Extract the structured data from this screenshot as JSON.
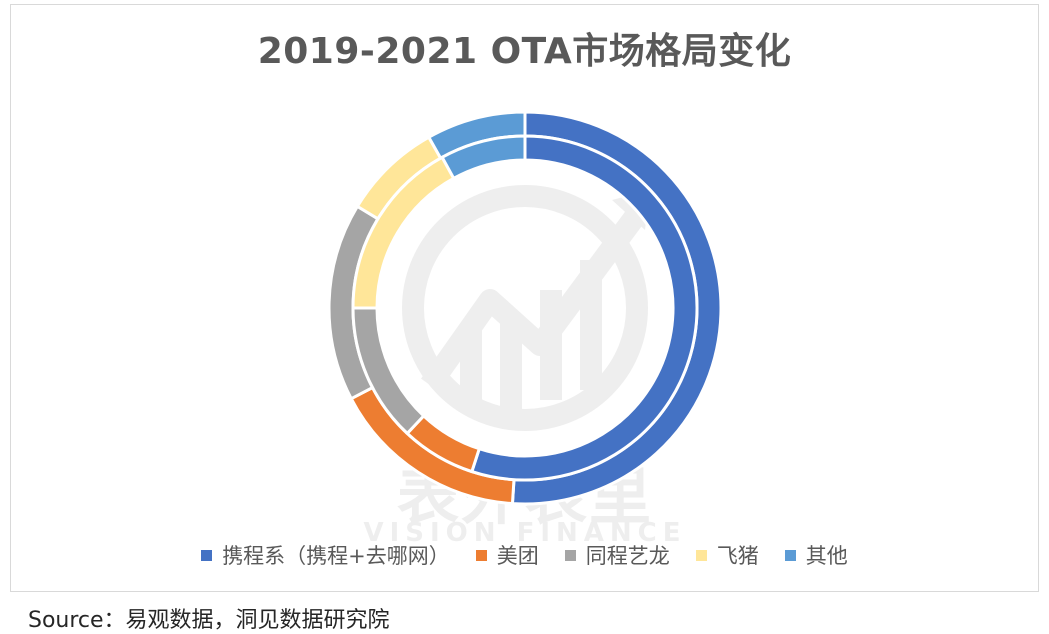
{
  "chart_data": {
    "type": "pie",
    "title": "2019-2021 OTA市场格局变化",
    "categories": [
      "携程系（携程+去哪网）",
      "美团",
      "同程艺龙",
      "飞猪",
      "其他"
    ],
    "series": [
      {
        "ring": "outer",
        "values": [
          50,
          16,
          16,
          8,
          8
        ]
      },
      {
        "ring": "inner",
        "values": [
          55,
          7,
          13,
          17,
          8
        ]
      }
    ],
    "colors": [
      "#4472C4",
      "#ED7D31",
      "#A5A5A5",
      "#FFE699",
      "#5B9BD5"
    ],
    "legend_position": "bottom"
  },
  "watermark": {
    "text": "表外表里",
    "subtext": "VISION FINANCE"
  },
  "source_text": "Source：易观数据，洞见数据研究院"
}
